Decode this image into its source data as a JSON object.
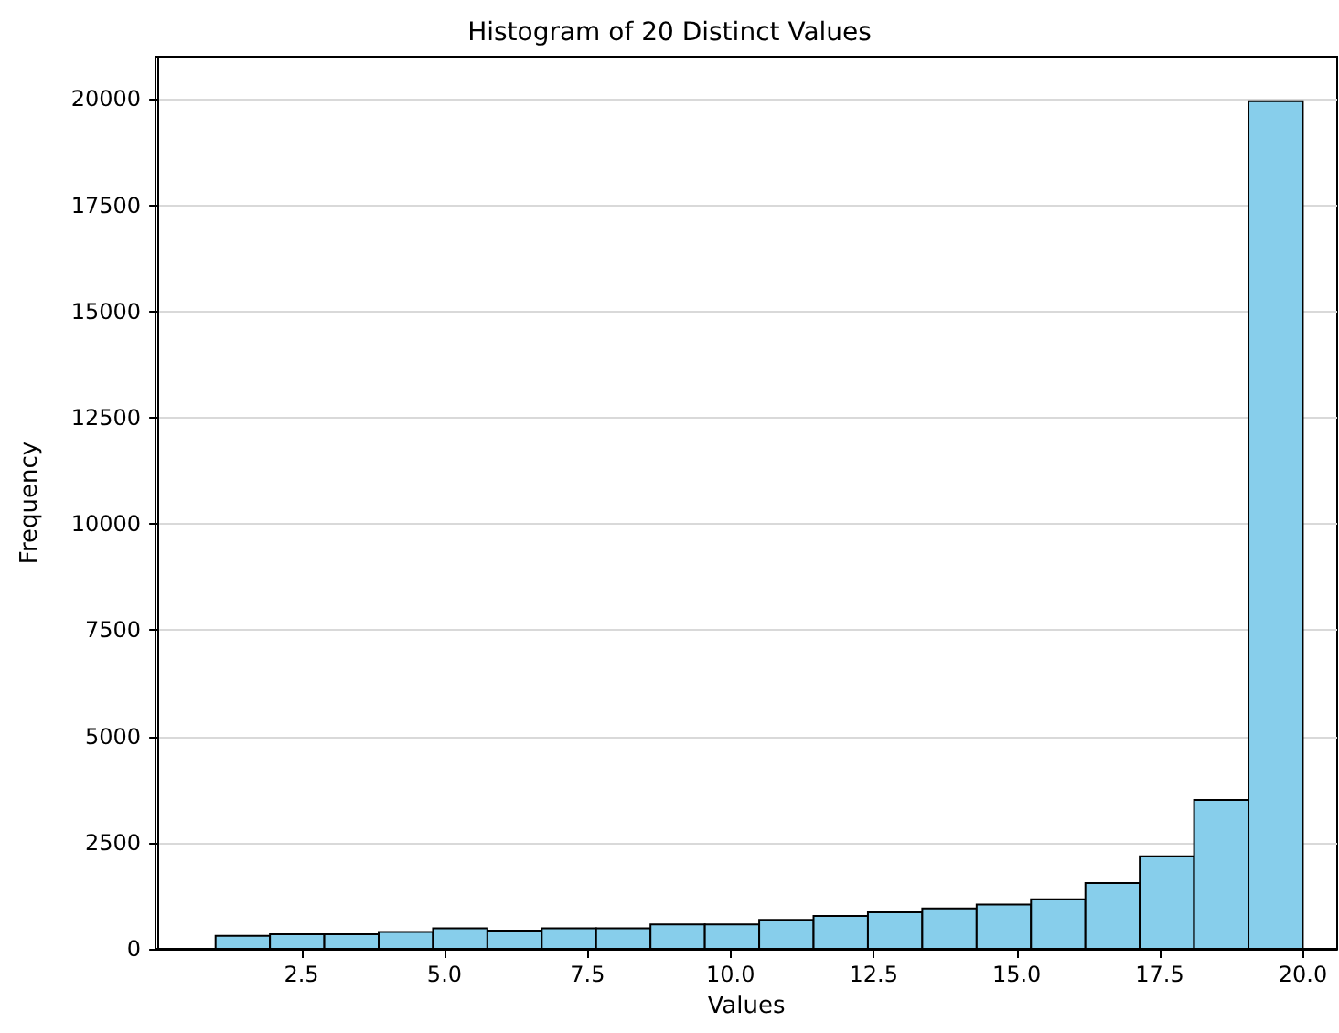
{
  "chart_data": {
    "type": "histogram",
    "title": "Histogram of 20 Distinct Values",
    "xlabel": "Values",
    "ylabel": "Frequency",
    "bins": [
      1,
      1.95,
      2.9,
      3.85,
      4.8,
      5.75,
      6.7,
      7.65,
      8.6,
      9.55,
      10.5,
      11.45,
      12.4,
      13.35,
      14.3,
      15.25,
      16.2,
      17.15,
      18.1,
      19.05,
      20
    ],
    "values": [
      306,
      342,
      342,
      396,
      486,
      432,
      486,
      486,
      576,
      576,
      683,
      773,
      863,
      953,
      1043,
      1169,
      1547,
      2176,
      3507,
      19950
    ],
    "color": "#87ceeb",
    "xlim": [
      -0.05,
      20.6
    ],
    "xticks": [
      {
        "value": 2.5,
        "label": "2.5"
      },
      {
        "value": 5,
        "label": "5.0"
      },
      {
        "value": 7.5,
        "label": "7.5"
      },
      {
        "value": 10,
        "label": "10.0"
      },
      {
        "value": 12.5,
        "label": "12.5"
      },
      {
        "value": 15,
        "label": "15.0"
      },
      {
        "value": 17.5,
        "label": "17.5"
      },
      {
        "value": 20,
        "label": "20.0"
      }
    ],
    "ylim": [
      0,
      21000
    ],
    "yticks": [
      0,
      2500,
      5000,
      7500,
      10000,
      12500,
      15000,
      17500,
      20000
    ],
    "grid": "y"
  }
}
